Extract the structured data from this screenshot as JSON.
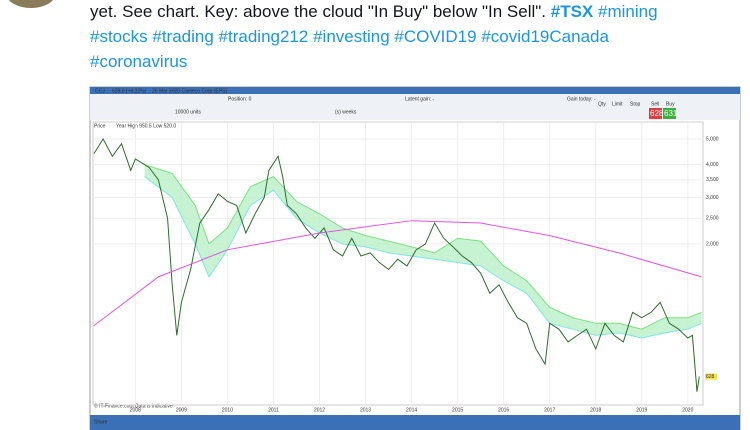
{
  "tweet": {
    "lines": [
      [
        "yet. See chart. Key: above the cloud \"In Buy\" below \"In Sell\".",
        "#TSX",
        "#mining"
      ],
      [
        "#stocks",
        "#trading",
        "#trading212",
        "#investing",
        "#COVID19",
        "#covid19Canada"
      ],
      [
        "#coronavirus"
      ]
    ]
  },
  "chart": {
    "type": "line",
    "header": {
      "symbol": "CCJ",
      "change": "628.0 (+4.22%)",
      "subtitle": "26 Mar 2020 Cameco Corp (EPS)",
      "position": "Position: 0",
      "latent": "Latent gain: -",
      "gain_today": "Gain today: -",
      "units": "10000 units",
      "period": "(s) weeks",
      "qty": "Qty",
      "limit": "Limit",
      "stop": "Stop",
      "sell": "Sell",
      "buy": "Buy",
      "sell_price": "628",
      "buy_price": "631",
      "price": "Price",
      "range": "Year High 950.5 Low 520.0"
    },
    "footer": {
      "source": "© IT-Finance.com Data is indicative",
      "share": "Share"
    },
    "log_scale": true,
    "xlim": [
      2007.08,
      2020.33
    ],
    "ylim": [
      490,
      5800
    ],
    "xticks": [
      2008,
      2009,
      2010,
      2011,
      2012,
      2013,
      2014,
      2015,
      2016,
      2017,
      2018,
      2019,
      2020
    ],
    "yticks": [
      {
        "value": 2000,
        "label": "2,000"
      },
      {
        "value": 2500,
        "label": "2,500"
      },
      {
        "value": 3000,
        "label": "3,000"
      },
      {
        "value": 3500,
        "label": "3,500"
      },
      {
        "value": 4000,
        "label": "4,000"
      },
      {
        "value": 5000,
        "label": "5,000"
      }
    ],
    "grid": true,
    "last_price": 628,
    "series": [
      {
        "color": "#2f6b2f",
        "x": [
          2007.1,
          2007.3,
          2007.5,
          2007.7,
          2007.9,
          2008.0,
          2008.3,
          2008.5,
          2008.7,
          2008.8,
          2008.9,
          2009.0,
          2009.2,
          2009.4,
          2009.6,
          2009.8,
          2010.0,
          2010.2,
          2010.4,
          2010.6,
          2010.8,
          2010.9,
          2011.1,
          2011.2,
          2011.3,
          2011.5,
          2011.7,
          2011.9,
          2012.1,
          2012.3,
          2012.5,
          2012.7,
          2012.9,
          2013.1,
          2013.3,
          2013.5,
          2013.7,
          2013.9,
          2014.1,
          2014.3,
          2014.5,
          2014.7,
          2014.9,
          2015.1,
          2015.3,
          2015.5,
          2015.7,
          2015.9,
          2016.1,
          2016.3,
          2016.5,
          2016.7,
          2016.9,
          2017.0,
          2017.2,
          2017.4,
          2017.6,
          2017.8,
          2018.0,
          2018.2,
          2018.4,
          2018.6,
          2018.8,
          2019.0,
          2019.2,
          2019.4,
          2019.6,
          2019.8,
          2020.0,
          2020.1,
          2020.2,
          2020.25
        ],
        "values": [
          4400,
          5000,
          4300,
          4800,
          3800,
          4200,
          3900,
          3500,
          2500,
          1400,
          900,
          1200,
          1600,
          2400,
          2700,
          3100,
          2900,
          2800,
          2200,
          2600,
          3000,
          3800,
          4300,
          3600,
          2800,
          2600,
          2300,
          2100,
          2300,
          1900,
          1800,
          2100,
          1800,
          1850,
          1700,
          1600,
          1750,
          1650,
          1900,
          2000,
          2400,
          2100,
          1950,
          1800,
          1700,
          1550,
          1300,
          1400,
          1200,
          1050,
          1000,
          800,
          700,
          1000,
          950,
          850,
          900,
          950,
          800,
          1000,
          900,
          850,
          1100,
          1050,
          1100,
          1200,
          1000,
          950,
          880,
          900,
          550,
          628
        ]
      },
      {
        "color": "#e055e0",
        "x": [
          2007.1,
          2008.5,
          2010.0,
          2012.0,
          2014.0,
          2015.5,
          2017.0,
          2018.5,
          2020.3
        ],
        "values": [
          980,
          1500,
          1900,
          2200,
          2450,
          2400,
          2150,
          1850,
          1500
        ]
      }
    ],
    "cloud": {
      "upper_color": "#7ee07e",
      "lower_color": "#7fe3e8",
      "fill": "#b9f0c8",
      "x": [
        2008.2,
        2008.8,
        2009.3,
        2009.6,
        2010.0,
        2010.5,
        2011.0,
        2011.5,
        2012.0,
        2012.5,
        2013.0,
        2013.5,
        2014.0,
        2014.5,
        2015.0,
        2015.5,
        2016.0,
        2016.5,
        2017.0,
        2017.5,
        2018.0,
        2018.5,
        2019.0,
        2019.5,
        2020.0,
        2020.3
      ],
      "upper": [
        4000,
        3700,
        2800,
        2000,
        2300,
        3300,
        3600,
        2900,
        2600,
        2300,
        2150,
        2050,
        1950,
        1850,
        2100,
        2050,
        1650,
        1450,
        1150,
        1050,
        1000,
        1000,
        950,
        1050,
        1050,
        1100
      ],
      "lower": [
        3600,
        3000,
        2000,
        1500,
        1900,
        2800,
        3200,
        2500,
        2200,
        2000,
        1950,
        1850,
        1800,
        1750,
        1700,
        1650,
        1450,
        1300,
        1000,
        950,
        900,
        920,
        880,
        920,
        950,
        1000
      ]
    }
  }
}
